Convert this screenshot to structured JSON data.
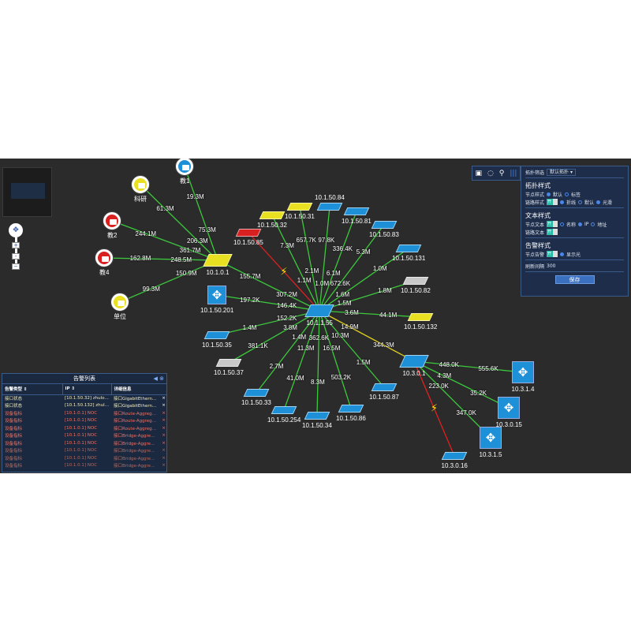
{
  "colors": {
    "background": "#2b2b2b",
    "link_ok": "#3cc83c",
    "link_down": "#e02020",
    "link_warn": "#e0d020",
    "node_blue": "#1e90d8",
    "node_yellow": "#e8e020",
    "node_red": "#d82020",
    "node_gray": "#c8c8c8",
    "panel_bg": "#1e2d4a"
  },
  "toolbar": {
    "icons": [
      "fit-icon",
      "refresh-icon",
      "search-icon",
      "columns-icon"
    ]
  },
  "panel": {
    "filter_label": "拓扑筛选",
    "filter_value": "默认拓扑",
    "topo_style": "拓扑样式",
    "node_style_label": "节点样式",
    "node_style_opts": [
      "默认",
      "标签"
    ],
    "link_style_label": "链路样式",
    "toggle_on": "开",
    "link_style_opts": [
      "折线",
      "默认",
      "光滑"
    ],
    "text_style": "文本样式",
    "node_text_label": "节点文本",
    "node_text_opts": [
      "名称",
      "IP",
      "地址"
    ],
    "link_text_label": "链路文本",
    "alarm_style": "告警样式",
    "node_alarm_label": "节点告警",
    "node_alarm_opt": "显示光",
    "refresh_label": "刷新间隔",
    "refresh_value": "300",
    "save": "保存"
  },
  "alarm_list": {
    "title": "告警列表",
    "headers": [
      "告警类型 ⇕",
      "IP ⇕",
      "详细信息"
    ],
    "rows": [
      {
        "type": "接口状态",
        "ip": "[10.1.50.32] zhulou-32",
        "detail": "接口GigabitEthernet1/0/13...",
        "level": "info"
      },
      {
        "type": "接口状态",
        "ip": "[10.1.50.132] zhulou...",
        "detail": "接口GigabitEthernet1/0/1...",
        "level": "info"
      },
      {
        "type": "设备指标",
        "ip": "[10.1.0.1] NOC",
        "detail": "接口Route-Aggregation36,...",
        "level": "warn"
      },
      {
        "type": "设备指标",
        "ip": "[10.1.0.1] NOC",
        "detail": "接口Route-Aggregation48,...",
        "level": "warn"
      },
      {
        "type": "设备指标",
        "ip": "[10.1.0.1] NOC",
        "detail": "接口Route-Aggregation49,...",
        "level": "warn"
      },
      {
        "type": "设备指标",
        "ip": "[10.1.0.1] NOC",
        "detail": "接口Bridge-Aggregation11...",
        "level": "warn"
      },
      {
        "type": "设备指标",
        "ip": "[10.1.0.1] NOC",
        "detail": "接口Bridge-Aggregation11...",
        "level": "warn"
      },
      {
        "type": "设备指标",
        "ip": "[10.1.0.1] NOC",
        "detail": "接口Bridge-Aggregation11...",
        "level": "fade"
      },
      {
        "type": "设备指标",
        "ip": "[10.1.0.1] NOC",
        "detail": "接口Bridge-Aggregation11...",
        "level": "fade"
      },
      {
        "type": "设备指标",
        "ip": "[10.1.0.1] NOC",
        "detail": "接口Bridge-Aggregation11...",
        "level": "fade"
      }
    ]
  },
  "nodes": [
    {
      "id": "jiao1",
      "label": "教1",
      "kind": "circle",
      "color": "blue"
    },
    {
      "id": "keyan",
      "label": "科研",
      "kind": "circle",
      "color": "yellow"
    },
    {
      "id": "jiao2",
      "label": "教2",
      "kind": "circle",
      "color": "red"
    },
    {
      "id": "jiao4",
      "label": "教4",
      "kind": "circle",
      "color": "red"
    },
    {
      "id": "danwei",
      "label": "单位",
      "kind": "circle",
      "color": "yellow"
    },
    {
      "id": "n1001",
      "label": "10.1.0.1",
      "kind": "switch",
      "color": "yellow"
    },
    {
      "id": "n201",
      "label": "10.1.50.201",
      "kind": "router",
      "color": "blue"
    },
    {
      "id": "core",
      "label": "10.1.1.55",
      "kind": "switch",
      "color": "blue"
    },
    {
      "id": "n85",
      "label": "10.1.50.85",
      "kind": "switch",
      "color": "red"
    },
    {
      "id": "n32",
      "label": "10.1.50.32",
      "kind": "switch",
      "color": "yellow"
    },
    {
      "id": "n31",
      "label": "10.1.50.31",
      "kind": "switch",
      "color": "yellow"
    },
    {
      "id": "n84",
      "label": "10.1.50.84",
      "kind": "switch",
      "color": "blue"
    },
    {
      "id": "n81",
      "label": "10.1.50.81",
      "kind": "switch",
      "color": "blue"
    },
    {
      "id": "n83",
      "label": "10.1.50.83",
      "kind": "switch",
      "color": "blue"
    },
    {
      "id": "n131",
      "label": "10.1.50.131",
      "kind": "switch",
      "color": "blue"
    },
    {
      "id": "n82",
      "label": "10.1.50.82",
      "kind": "switch",
      "color": "gray"
    },
    {
      "id": "n132",
      "label": "10.1.50.132",
      "kind": "switch",
      "color": "yellow"
    },
    {
      "id": "n35",
      "label": "10.1.50.35",
      "kind": "switch",
      "color": "blue"
    },
    {
      "id": "n37",
      "label": "10.1.50.37",
      "kind": "switch",
      "color": "gray"
    },
    {
      "id": "n33",
      "label": "10.1.50.33",
      "kind": "switch",
      "color": "blue"
    },
    {
      "id": "n254",
      "label": "10.1.50.254",
      "kind": "switch",
      "color": "blue"
    },
    {
      "id": "n34",
      "label": "10.1.50.34",
      "kind": "switch",
      "color": "blue"
    },
    {
      "id": "n86",
      "label": "10.1.50.86",
      "kind": "switch",
      "color": "blue"
    },
    {
      "id": "n87",
      "label": "10.1.50.87",
      "kind": "switch",
      "color": "blue"
    },
    {
      "id": "n301",
      "label": "10.3.0.1",
      "kind": "switch",
      "color": "blue"
    },
    {
      "id": "n314",
      "label": "10.3.1.4",
      "kind": "router",
      "color": "blue"
    },
    {
      "id": "n3015",
      "label": "10.3.0.15",
      "kind": "router",
      "color": "blue"
    },
    {
      "id": "n315",
      "label": "10.3.1.5",
      "kind": "router",
      "color": "blue"
    },
    {
      "id": "n3016",
      "label": "10.3.0.16",
      "kind": "switch",
      "color": "blue"
    }
  ],
  "links": [
    {
      "from": "jiao1",
      "to": "n1001",
      "labels": [
        "19.3M",
        "75.3M"
      ],
      "status": "ok"
    },
    {
      "from": "keyan",
      "to": "n1001",
      "labels": [
        "61.3M",
        "206.3M"
      ],
      "status": "ok"
    },
    {
      "from": "jiao2",
      "to": "n1001",
      "labels": [
        "244.1M",
        "361.7M"
      ],
      "status": "ok"
    },
    {
      "from": "jiao4",
      "to": "n1001",
      "labels": [
        "162.8M",
        "248.5M"
      ],
      "status": "ok"
    },
    {
      "from": "danwei",
      "to": "n1001",
      "labels": [
        "99.3M",
        "150.9M"
      ],
      "status": "ok"
    },
    {
      "from": "n1001",
      "to": "core",
      "labels": [
        "155.7M",
        "307.2M"
      ],
      "status": "ok"
    },
    {
      "from": "n201",
      "to": "core",
      "labels": [
        "197.2K",
        "146.4K"
      ],
      "status": "ok"
    },
    {
      "from": "n85",
      "to": "core",
      "labels": [],
      "status": "down"
    },
    {
      "from": "n32",
      "to": "core",
      "labels": [
        "7.3M",
        "1.1M"
      ],
      "status": "ok"
    },
    {
      "from": "n31",
      "to": "core",
      "labels": [
        "657.7K",
        "2.1M"
      ],
      "status": "ok"
    },
    {
      "from": "n84",
      "to": "core",
      "labels": [
        "97.8K",
        "1.0M"
      ],
      "status": "ok"
    },
    {
      "from": "n81",
      "to": "core",
      "labels": [
        "336.4K",
        "6.1M"
      ],
      "status": "ok"
    },
    {
      "from": "n83",
      "to": "core",
      "labels": [
        "5.3M",
        "672.6K"
      ],
      "status": "ok"
    },
    {
      "from": "n131",
      "to": "core",
      "labels": [
        "1.0M",
        "1.6M"
      ],
      "status": "ok"
    },
    {
      "from": "n82",
      "to": "core",
      "labels": [
        "1.8M",
        "1.5M"
      ],
      "status": "ok"
    },
    {
      "from": "n132",
      "to": "core",
      "labels": [
        "44.1M",
        "3.6M"
      ],
      "status": "ok"
    },
    {
      "from": "n35",
      "to": "core",
      "labels": [
        "1.4M",
        "152.2K"
      ],
      "status": "ok"
    },
    {
      "from": "n37",
      "to": "core",
      "labels": [
        "381.1K",
        "3.8M"
      ],
      "status": "ok"
    },
    {
      "from": "n33",
      "to": "core",
      "labels": [
        "2.7M",
        "1.4M"
      ],
      "status": "ok"
    },
    {
      "from": "n254",
      "to": "core",
      "labels": [
        "41.0M",
        "11.3M"
      ],
      "status": "ok"
    },
    {
      "from": "n34",
      "to": "core",
      "labels": [
        "8.3M",
        "362.6K"
      ],
      "status": "ok"
    },
    {
      "from": "n86",
      "to": "core",
      "labels": [
        "503.2K",
        "16.5M"
      ],
      "status": "ok"
    },
    {
      "from": "n87",
      "to": "core",
      "labels": [
        "1.5M",
        "10.3M"
      ],
      "status": "ok"
    },
    {
      "from": "n301",
      "to": "core",
      "labels": [
        "344.3M",
        "14.9M"
      ],
      "status": "warn"
    },
    {
      "from": "n314",
      "to": "n301",
      "labels": [
        "555.6K",
        "448.0K"
      ],
      "status": "ok"
    },
    {
      "from": "n3015",
      "to": "n301",
      "labels": [
        "35.2K",
        "4.3M"
      ],
      "status": "ok"
    },
    {
      "from": "n315",
      "to": "n301",
      "labels": [
        "347.0K",
        "223.0K"
      ],
      "status": "ok"
    },
    {
      "from": "n3016",
      "to": "n301",
      "labels": [],
      "status": "down"
    }
  ]
}
